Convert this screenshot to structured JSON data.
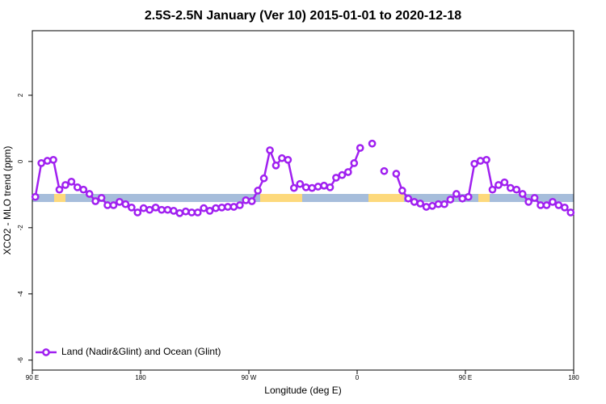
{
  "chart_data": {
    "type": "line",
    "title": "2.5S-2.5N January (Ver 10)   2015-01-01 to 2020-12-18",
    "xlabel": "Longitude (deg E)",
    "ylabel": "XCO2 - MLO trend (ppm)",
    "xlim": [
      90,
      540
    ],
    "xticks": [
      {
        "value": 90,
        "label": "90 E"
      },
      180,
      {
        "value": 270,
        "label": "90 W"
      },
      {
        "value": 360,
        "label": "0"
      },
      {
        "value": 450,
        "label": "90 E"
      },
      {
        "value": 540,
        "label": "180"
      }
    ],
    "ylim": [
      -6.3,
      3.95
    ],
    "yticks": [
      -6,
      -4,
      -2,
      0,
      2
    ],
    "legend": "bottom-left",
    "x": [
      92.5,
      97.5,
      102.5,
      107.5,
      112.5,
      117.5,
      122.5,
      127.5,
      132.5,
      137.5,
      142.5,
      147.5,
      152.5,
      157.5,
      162.5,
      167.5,
      172.5,
      177.5,
      182.5,
      187.5,
      192.5,
      197.5,
      202.5,
      207.5,
      212.5,
      217.5,
      222.5,
      227.5,
      232.5,
      237.5,
      242.5,
      247.5,
      252.5,
      257.5,
      262.5,
      267.5,
      272.5,
      277.5,
      282.5,
      287.5,
      292.5,
      297.5,
      302.5,
      307.5,
      312.5,
      317.5,
      322.5,
      327.5,
      332.5,
      337.5,
      342.5,
      347.5,
      352.5,
      357.5,
      362.5,
      367.5,
      372.5,
      377.5,
      382.5,
      387.5,
      392.5,
      397.5,
      402.5,
      407.5,
      412.5,
      417.5,
      422.5,
      427.5,
      432.5,
      437.5,
      442.5,
      447.5,
      452.5,
      457.5,
      462.5,
      467.5,
      472.5,
      477.5,
      482.5,
      487.5,
      492.5,
      497.5,
      502.5,
      507.5,
      512.5,
      517.5,
      522.5,
      527.5,
      532.5,
      537.5
    ],
    "series": [
      {
        "name": "Land (Nadir&Glint) and Ocean (Glint)",
        "color": "#a020f0",
        "values": [
          -1.07,
          -0.05,
          0.02,
          0.05,
          -0.85,
          -0.71,
          -0.61,
          -0.78,
          -0.85,
          -0.98,
          -1.2,
          -1.1,
          -1.32,
          -1.32,
          -1.22,
          -1.29,
          -1.39,
          -1.54,
          -1.41,
          -1.46,
          -1.39,
          -1.46,
          -1.46,
          -1.49,
          -1.56,
          -1.51,
          -1.54,
          -1.54,
          -1.41,
          -1.49,
          -1.41,
          -1.39,
          -1.37,
          -1.37,
          -1.32,
          -1.17,
          -1.2,
          -0.88,
          -0.51,
          0.34,
          -0.12,
          0.1,
          0.05,
          -0.8,
          -0.68,
          -0.78,
          -0.8,
          -0.76,
          -0.73,
          -0.78,
          -0.49,
          -0.41,
          -0.32,
          -0.05,
          0.41,
          null,
          0.54,
          null,
          -0.29,
          null,
          -0.37,
          -0.88,
          -1.12,
          -1.22,
          -1.27,
          -1.37,
          -1.34,
          -1.29,
          -1.29,
          -1.15,
          -0.98,
          -1.12,
          -1.07,
          -0.07,
          0.02,
          0.05,
          -0.85,
          -0.71,
          -0.63,
          -0.8,
          -0.85,
          -0.98,
          -1.22,
          -1.1,
          -1.32,
          -1.32,
          -1.22,
          -1.32,
          -1.39,
          -1.54
        ]
      }
    ]
  }
}
